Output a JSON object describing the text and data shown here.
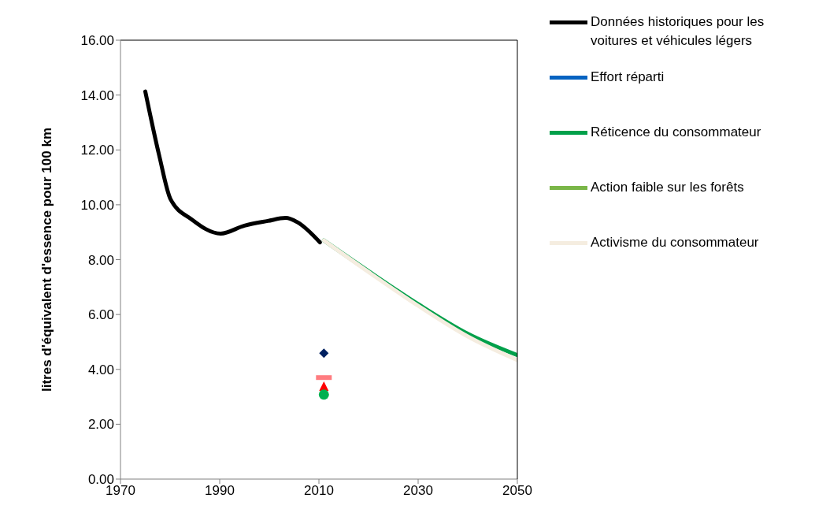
{
  "chart_data": {
    "type": "line",
    "ylabel": "litres d'équivalent d'essence pour 100 km",
    "xlim": [
      1970,
      2050
    ],
    "xticks": [
      1970,
      1990,
      2010,
      2030,
      2050
    ],
    "ylim": [
      0,
      16
    ],
    "yticks": [
      {
        "value": 0,
        "label": "0.00"
      },
      {
        "value": 2,
        "label": "2.00"
      },
      {
        "value": 4,
        "label": "4.00"
      },
      {
        "value": 6,
        "label": "6.00"
      },
      {
        "value": 8,
        "label": "8.00"
      },
      {
        "value": 10,
        "label": "10.00"
      },
      {
        "value": 12,
        "label": "12.00"
      },
      {
        "value": 14,
        "label": "14.00"
      },
      {
        "value": 16,
        "label": "16.00"
      }
    ],
    "grid": false,
    "legend": "right",
    "marker": "none",
    "line_style": "solid",
    "series": [
      {
        "name": "Données historiques pour les voitures et véhicules légers",
        "color": "#000000",
        "x": [
          1975,
          1977.8,
          1980.1,
          1984.3,
          1990.2,
          1995,
          1999.7,
          2003.3,
          2005.7,
          2010.2
        ],
        "values": [
          14.13,
          11.8,
          10.2,
          9.47,
          8.95,
          9.24,
          9.41,
          9.52,
          9.36,
          8.63
        ]
      },
      {
        "name": "Effort réparti",
        "color": "#0563c1"
      },
      {
        "name": "Réticence du consommateur",
        "color": "#00a04a",
        "x": [
          2011,
          2020,
          2030,
          2040,
          2050
        ],
        "values": [
          8.7,
          7.58,
          6.38,
          5.3,
          4.52
        ]
      },
      {
        "name": "Action faible sur les forêts",
        "color": "#7ab648"
      },
      {
        "name": "Activisme du consommateur",
        "color": "#f5ede0",
        "x": [
          2011,
          2020,
          2030,
          2040,
          2050
        ],
        "values": [
          8.7,
          7.55,
          6.32,
          5.2,
          4.34
        ]
      },
      {
        "type": "scatter",
        "marker": "diamond",
        "color": "#002060",
        "x": [
          2011
        ],
        "values": [
          4.59
        ]
      },
      {
        "type": "scatter",
        "marker": "square",
        "color": "#ff7c80",
        "x": [
          2011
        ],
        "values": [
          3.7
        ]
      },
      {
        "type": "scatter",
        "marker": "triangle",
        "color": "#ff0000",
        "x": [
          2011
        ],
        "values": [
          3.36
        ]
      },
      {
        "type": "scatter",
        "marker": "circle",
        "color": "#00b050",
        "x": [
          2011
        ],
        "values": [
          3.08
        ]
      }
    ]
  }
}
